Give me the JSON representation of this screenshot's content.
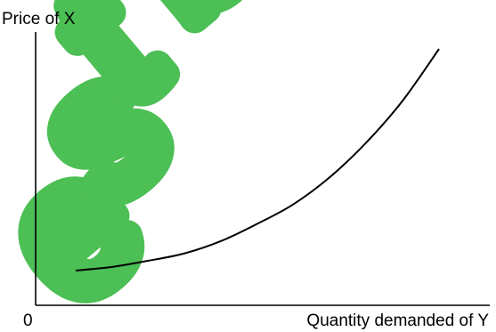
{
  "chart_data": {
    "type": "line",
    "title": "",
    "ylabel": "Price of X",
    "xlabel": "Quantity demanded of  Y",
    "origin_label": "0",
    "series": [
      {
        "x": [
          0,
          0.1,
          0.2,
          0.3,
          0.4,
          0.5,
          0.6,
          0.7,
          0.8,
          0.9,
          1.0
        ],
        "y": [
          0.06,
          0.075,
          0.1,
          0.13,
          0.18,
          0.25,
          0.33,
          0.44,
          0.58,
          0.75,
          0.96
        ]
      }
    ],
    "xlim": [
      0,
      1.0
    ],
    "ylim": [
      0,
      1.0
    ],
    "grid": false,
    "legend": "none"
  },
  "watermark": {
    "color": "#4cbf55",
    "letters": [
      "e",
      "s",
      "t",
      "b"
    ]
  },
  "colors": {
    "axis": "#000000",
    "curve": "#000000",
    "background": "#ffffff"
  }
}
